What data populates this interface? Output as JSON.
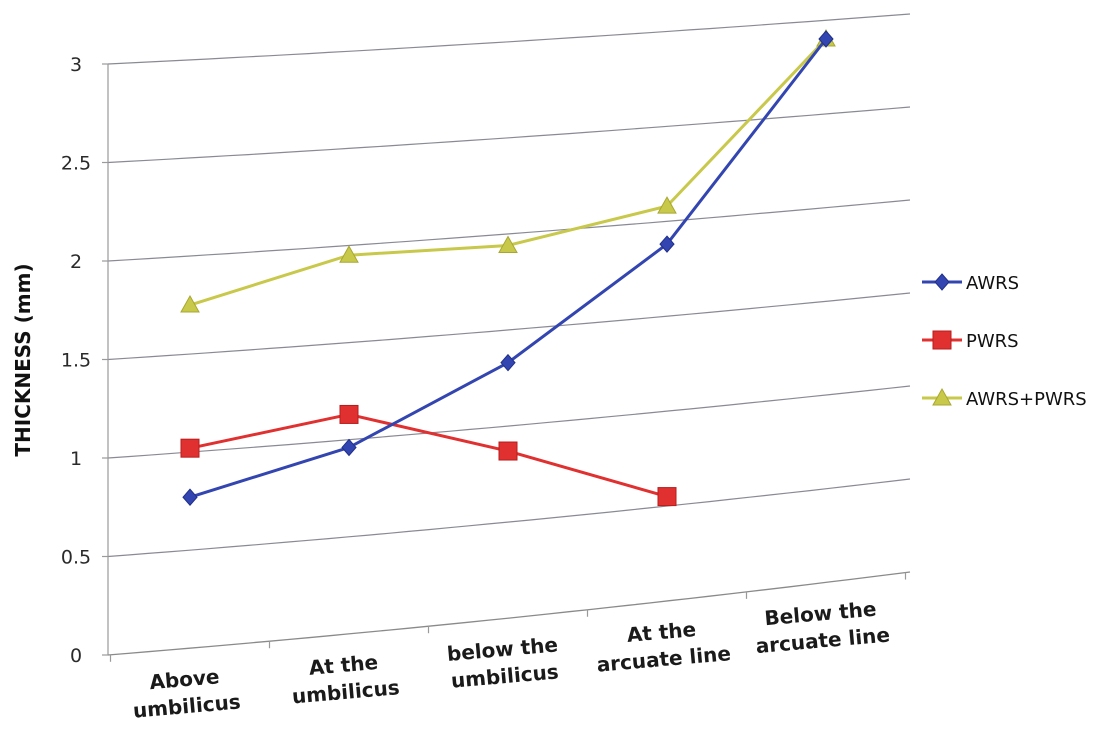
{
  "chart_data": {
    "type": "line",
    "title": "",
    "xlabel": "",
    "ylabel": "THICKNESS (mm)",
    "ylim": [
      0,
      3
    ],
    "yticks": [
      "0",
      "0.5",
      "1",
      "1.5",
      "2",
      "2.5",
      "3"
    ],
    "grid": true,
    "legend_position": "right",
    "categories": [
      [
        "Above",
        "umbilicus"
      ],
      [
        "At the",
        "umbilicus"
      ],
      [
        "below the",
        "umbilicus"
      ],
      [
        "At the",
        "arcuate line"
      ],
      [
        "Below the",
        "arcuate line"
      ]
    ],
    "series": [
      {
        "name": "AWRS",
        "color": "#3345b0",
        "marker": "diamond",
        "values": [
          0.77,
          0.96,
          1.33,
          1.88,
          2.9
        ]
      },
      {
        "name": "PWRS",
        "color": "#e03030",
        "marker": "square",
        "values": [
          1.02,
          1.13,
          0.87,
          0.55,
          null
        ]
      },
      {
        "name": "AWRS+PWRS",
        "color": "#c8c84a",
        "marker": "triangle",
        "values": [
          1.75,
          1.95,
          1.94,
          2.08,
          2.9
        ]
      }
    ]
  }
}
